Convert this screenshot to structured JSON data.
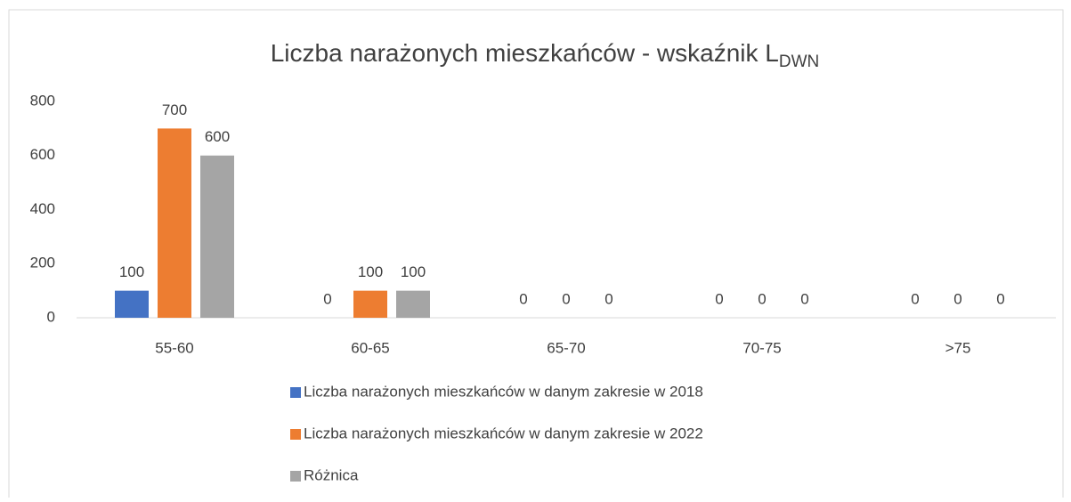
{
  "chart_data": {
    "type": "bar",
    "title": "Liczba narażonych mieszkańców - wskaźnik L",
    "title_subscript": "DWN",
    "categories": [
      "55-60",
      "60-65",
      "65-70",
      "70-75",
      ">75"
    ],
    "series": [
      {
        "name": "Liczba narażonych mieszkańców w danym zakresie w 2018",
        "color": "#4472c4",
        "values": [
          100,
          0,
          0,
          0,
          0
        ]
      },
      {
        "name": "Liczba narażonych mieszkańców w danym zakresie w 2022",
        "color": "#ed7d31",
        "values": [
          700,
          100,
          0,
          0,
          0
        ]
      },
      {
        "name": "Różnica",
        "color": "#a5a5a5",
        "values": [
          600,
          100,
          0,
          0,
          0
        ]
      }
    ],
    "ylim": [
      0,
      800
    ],
    "yticks": [
      0,
      200,
      400,
      600,
      800
    ],
    "grid": false,
    "legend": "bottom"
  }
}
